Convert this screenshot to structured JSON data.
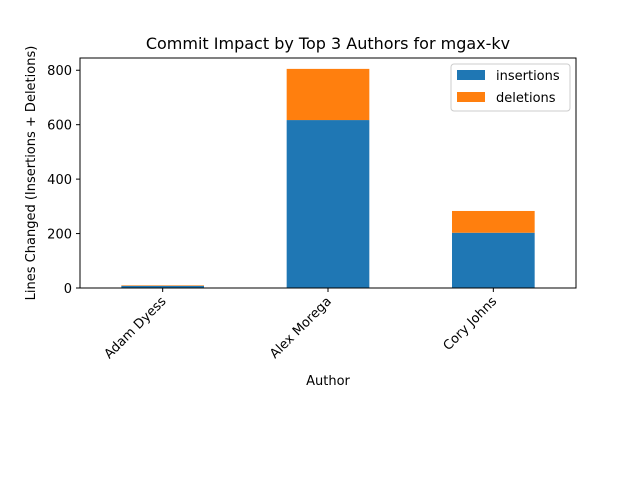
{
  "chart_data": {
    "type": "bar",
    "stacked": true,
    "title": "Commit Impact by Top 3 Authors for mgax-kv",
    "xlabel": "Author",
    "ylabel": "Lines Changed (Insertions + Deletions)",
    "categories": [
      "Adam Dyess",
      "Alex Morega",
      "Cory Johns"
    ],
    "series": [
      {
        "name": "insertions",
        "values": [
          8,
          617,
          203
        ],
        "color": "#1f77b4"
      },
      {
        "name": "deletions",
        "values": [
          2,
          188,
          80
        ],
        "color": "#ff7f0e"
      }
    ],
    "ylim": [
      0,
      845
    ],
    "yticks": [
      0,
      200,
      400,
      600,
      800
    ],
    "grid": false,
    "legend_position": "top-right"
  }
}
